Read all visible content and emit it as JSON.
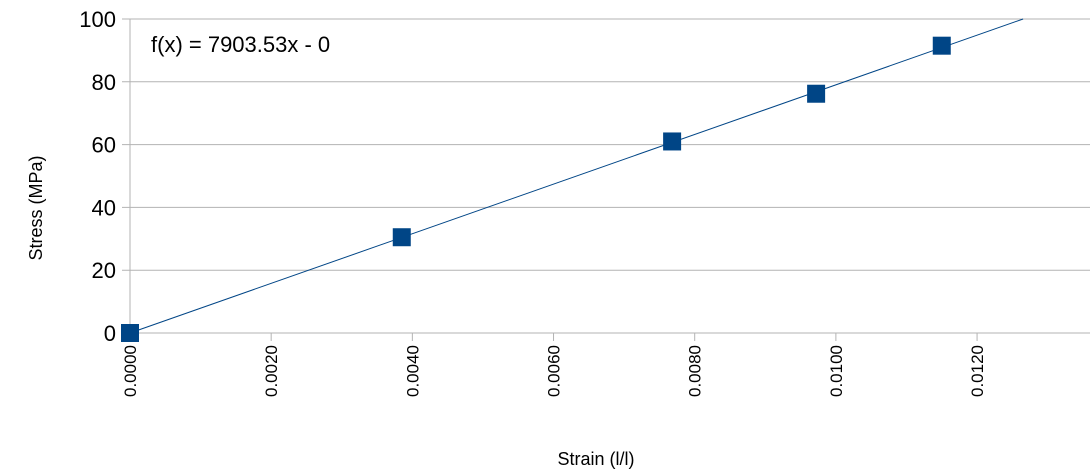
{
  "chart_data": {
    "type": "scatter",
    "title": "",
    "xlabel": "Strain (l/l)",
    "ylabel": "Stress (MPa)",
    "xlim": [
      0,
      0.0136
    ],
    "ylim": [
      0,
      100
    ],
    "x_ticks": [
      "0.0000",
      "0.0020",
      "0.0040",
      "0.0060",
      "0.0080",
      "0.0100",
      "0.0120"
    ],
    "y_ticks": [
      "0",
      "20",
      "40",
      "60",
      "80",
      "100"
    ],
    "grid": "horizontal",
    "legend": "none",
    "series": [
      {
        "x": [
          0.0,
          0.00385,
          0.00768,
          0.00972,
          0.0115
        ],
        "y": [
          0.0,
          30.5,
          61.0,
          76.2,
          91.5
        ],
        "marker": "square",
        "color": "#004586"
      }
    ],
    "trendline": {
      "type": "linear",
      "slope": 7903.53,
      "intercept": 0,
      "color": "#004586",
      "equation_label": "f(x) = 7903.53x - 0"
    },
    "colors": {
      "grid": "#b3b3b3",
      "axis": "#b3b3b3",
      "text": "#000000"
    }
  }
}
